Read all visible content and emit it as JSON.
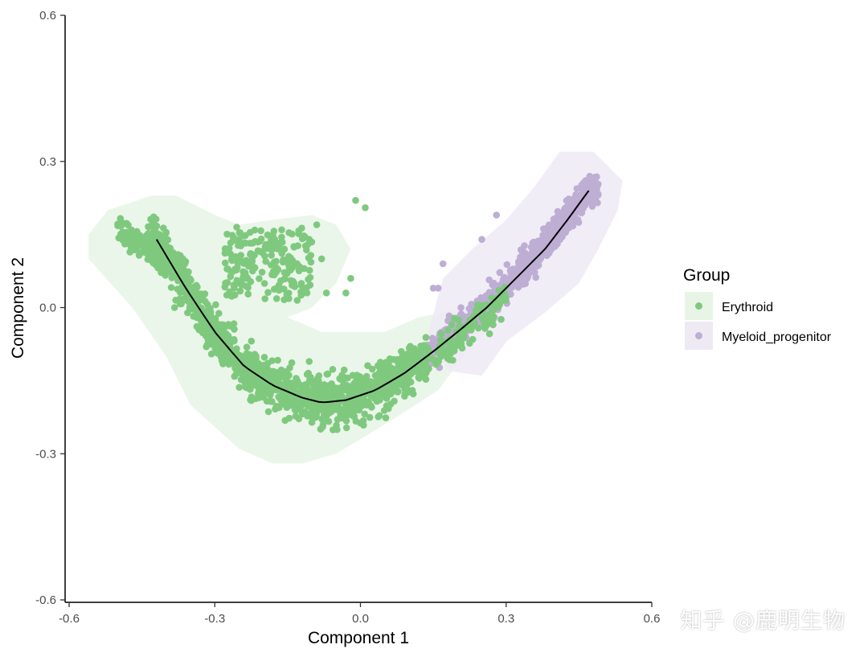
{
  "chart_data": {
    "type": "scatter",
    "xlabel": "Component 1",
    "ylabel": "Component 2",
    "xlim": [
      -0.6,
      0.6
    ],
    "ylim": [
      -0.6,
      0.6
    ],
    "xticks": [
      -0.6,
      -0.3,
      0.0,
      0.3,
      0.6
    ],
    "yticks": [
      -0.6,
      -0.3,
      0.0,
      0.3,
      0.6
    ],
    "xtick_labels": [
      "-0.6",
      "-0.3",
      "0.0",
      "0.3",
      "0.6"
    ],
    "ytick_labels": [
      "-0.6",
      "-0.3",
      "0.0",
      "0.3",
      "0.6"
    ],
    "legend_title": "Group",
    "series": [
      {
        "name": "Erythroid",
        "color": "#7FC97F",
        "hull_color": "#E8F4E6",
        "n": 1700
      },
      {
        "name": "Myeloid_progenitor",
        "color": "#BEAED4",
        "hull_color": "#EEEAF4",
        "n": 800
      }
    ],
    "trajectory": {
      "x": [
        -0.42,
        -0.36,
        -0.3,
        -0.24,
        -0.18,
        -0.12,
        -0.08,
        -0.03,
        0.03,
        0.09,
        0.15,
        0.2,
        0.26,
        0.32,
        0.38,
        0.43,
        0.47
      ],
      "y": [
        0.14,
        0.04,
        -0.05,
        -0.12,
        -0.16,
        -0.185,
        -0.195,
        -0.19,
        -0.17,
        -0.135,
        -0.09,
        -0.05,
        0.0,
        0.06,
        0.12,
        0.185,
        0.24
      ]
    },
    "hulls": [
      {
        "series": "Erythroid",
        "points": [
          [
            -0.56,
            0.15
          ],
          [
            -0.52,
            0.2
          ],
          [
            -0.43,
            0.23
          ],
          [
            -0.38,
            0.23
          ],
          [
            -0.3,
            0.19
          ],
          [
            -0.25,
            0.17
          ],
          [
            -0.18,
            0.18
          ],
          [
            -0.1,
            0.19
          ],
          [
            -0.05,
            0.17
          ],
          [
            -0.02,
            0.12
          ],
          [
            -0.05,
            0.05
          ],
          [
            -0.1,
            0.0
          ],
          [
            -0.15,
            -0.02
          ],
          [
            -0.08,
            -0.05
          ],
          [
            0.05,
            -0.05
          ],
          [
            0.12,
            -0.02
          ],
          [
            0.22,
            0.0
          ],
          [
            0.28,
            -0.03
          ],
          [
            0.22,
            -0.09
          ],
          [
            0.16,
            -0.17
          ],
          [
            0.05,
            -0.24
          ],
          [
            -0.05,
            -0.3
          ],
          [
            -0.12,
            -0.32
          ],
          [
            -0.18,
            -0.32
          ],
          [
            -0.25,
            -0.29
          ],
          [
            -0.35,
            -0.2
          ],
          [
            -0.4,
            -0.1
          ],
          [
            -0.47,
            0.0
          ],
          [
            -0.56,
            0.1
          ]
        ]
      },
      {
        "series": "Myeloid_progenitor",
        "points": [
          [
            0.14,
            -0.05
          ],
          [
            0.17,
            0.06
          ],
          [
            0.23,
            0.12
          ],
          [
            0.3,
            0.18
          ],
          [
            0.36,
            0.25
          ],
          [
            0.41,
            0.32
          ],
          [
            0.48,
            0.32
          ],
          [
            0.54,
            0.26
          ],
          [
            0.53,
            0.2
          ],
          [
            0.49,
            0.12
          ],
          [
            0.45,
            0.05
          ],
          [
            0.38,
            -0.01
          ],
          [
            0.3,
            -0.07
          ],
          [
            0.25,
            -0.14
          ],
          [
            0.18,
            -0.13
          ]
        ]
      }
    ]
  },
  "watermark": "知乎 @鹿明生物"
}
